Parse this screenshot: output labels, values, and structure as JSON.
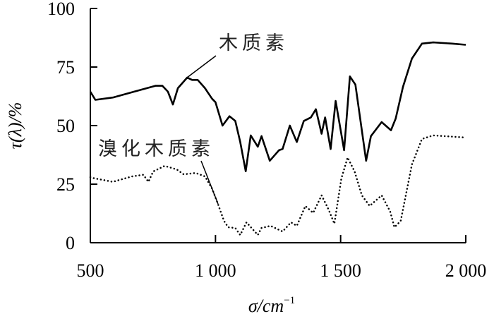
{
  "chart_data": {
    "type": "line",
    "title": "",
    "xlabel": "σ/cm",
    "xlabel_sup": "−1",
    "ylabel": "τ(λ)/%",
    "xlim": [
      500,
      2000
    ],
    "ylim": [
      0,
      100
    ],
    "xticks": [
      500,
      1000,
      1500,
      2000
    ],
    "xtick_labels": [
      "500",
      "1 000",
      "1 500",
      "2 000"
    ],
    "yticks": [
      0,
      25,
      50,
      75,
      100
    ],
    "ytick_labels": [
      "0",
      "25",
      "50",
      "75",
      "100"
    ],
    "grid": false,
    "series": [
      {
        "name": "木质素",
        "style": "solid",
        "color": "#000000",
        "points": [
          [
            500,
            64.5
          ],
          [
            520,
            61
          ],
          [
            590,
            62
          ],
          [
            675,
            64.5
          ],
          [
            760,
            67
          ],
          [
            788,
            67
          ],
          [
            810,
            64.5
          ],
          [
            830,
            59
          ],
          [
            850,
            66
          ],
          [
            887,
            70.5
          ],
          [
            907,
            69.5
          ],
          [
            929,
            69.5
          ],
          [
            958,
            66
          ],
          [
            986,
            61.5
          ],
          [
            1000,
            60
          ],
          [
            1028,
            50
          ],
          [
            1056,
            54
          ],
          [
            1079,
            52
          ],
          [
            1099,
            43
          ],
          [
            1121,
            30.5
          ],
          [
            1141,
            45.8
          ],
          [
            1169,
            41
          ],
          [
            1184,
            45.5
          ],
          [
            1217,
            35
          ],
          [
            1254,
            39.5
          ],
          [
            1268,
            40
          ],
          [
            1297,
            50
          ],
          [
            1325,
            43
          ],
          [
            1353,
            52
          ],
          [
            1381,
            53.5
          ],
          [
            1401,
            57
          ],
          [
            1424,
            46.5
          ],
          [
            1438,
            53.5
          ],
          [
            1460,
            40
          ],
          [
            1480,
            60.5
          ],
          [
            1514,
            39.5
          ],
          [
            1537,
            71
          ],
          [
            1559,
            67.5
          ],
          [
            1602,
            35
          ],
          [
            1621,
            45.5
          ],
          [
            1664,
            51.5
          ],
          [
            1701,
            48
          ],
          [
            1720,
            53
          ],
          [
            1749,
            66.5
          ],
          [
            1785,
            78.6
          ],
          [
            1825,
            85
          ],
          [
            1870,
            85.5
          ],
          [
            1946,
            85
          ],
          [
            2000,
            84.5
          ]
        ]
      },
      {
        "name": "溴化木质素",
        "style": "dotted",
        "color": "#000000",
        "points": [
          [
            500,
            28
          ],
          [
            506,
            27.7
          ],
          [
            590,
            26
          ],
          [
            667,
            28.3
          ],
          [
            712,
            29
          ],
          [
            732,
            26
          ],
          [
            751,
            30.4
          ],
          [
            797,
            32.8
          ],
          [
            845,
            31.3
          ],
          [
            873,
            29.2
          ],
          [
            921,
            29.8
          ],
          [
            958,
            28.3
          ],
          [
            986,
            23.2
          ],
          [
            1009,
            16.8
          ],
          [
            1034,
            9.3
          ],
          [
            1051,
            6.6
          ],
          [
            1079,
            6.3
          ],
          [
            1099,
            3.3
          ],
          [
            1124,
            8.7
          ],
          [
            1169,
            3.3
          ],
          [
            1184,
            6.3
          ],
          [
            1220,
            7.2
          ],
          [
            1268,
            4.8
          ],
          [
            1302,
            8.7
          ],
          [
            1325,
            7.2
          ],
          [
            1359,
            15.7
          ],
          [
            1390,
            12.7
          ],
          [
            1424,
            20.2
          ],
          [
            1452,
            14.2
          ],
          [
            1475,
            8.1
          ],
          [
            1503,
            27.4
          ],
          [
            1528,
            36.4
          ],
          [
            1556,
            30.4
          ],
          [
            1585,
            20.2
          ],
          [
            1616,
            15.7
          ],
          [
            1664,
            20.2
          ],
          [
            1698,
            13.3
          ],
          [
            1715,
            6.6
          ],
          [
            1740,
            9.3
          ],
          [
            1785,
            33.4
          ],
          [
            1825,
            44.3
          ],
          [
            1870,
            45.8
          ],
          [
            2000,
            44.9
          ]
        ]
      }
    ],
    "annotations": [
      {
        "text": "木质素",
        "series": 0,
        "at": [
          887,
          70.5
        ]
      },
      {
        "text": "溴化木质素",
        "series": 1,
        "at": [
          1009,
          16.8
        ]
      }
    ]
  }
}
